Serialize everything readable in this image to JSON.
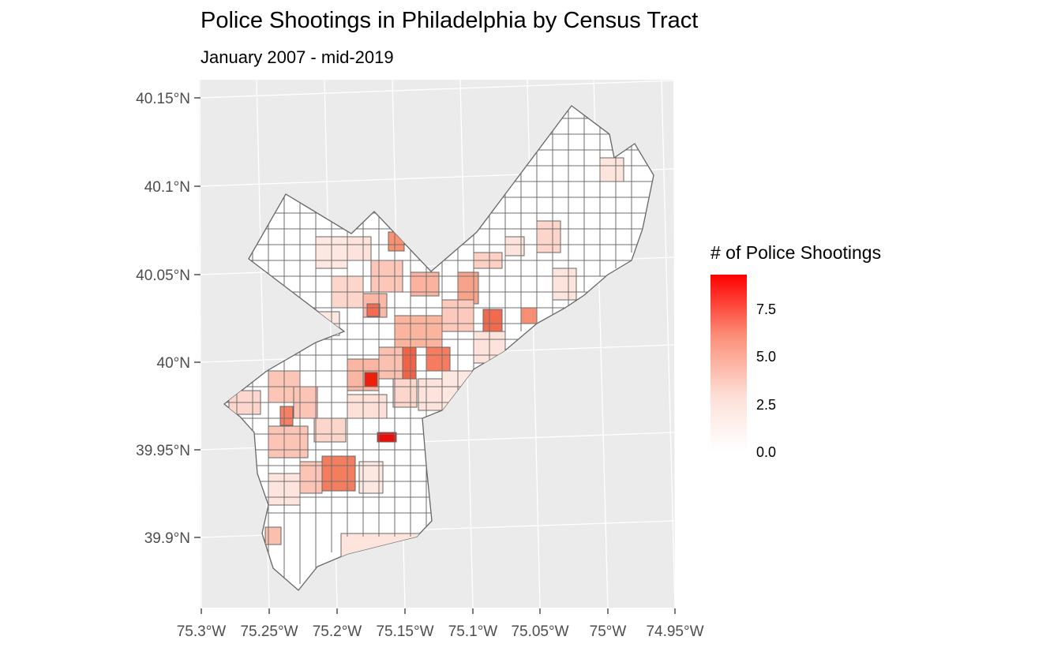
{
  "title": "Police Shootings in Philadelphia by Census Tract",
  "subtitle": "January 2007 - mid-2019",
  "legend": {
    "title": "# of Police Shootings",
    "min": 0,
    "max": 9,
    "ticks": [
      "0.0",
      "2.5",
      "5.0",
      "7.5"
    ],
    "color_low": "#ffffff",
    "color_high": "#ff0000"
  },
  "axes": {
    "y_ticks": [
      "40.15°N",
      "40.1°N",
      "40.05°N",
      "40°N",
      "39.95°N",
      "39.9°N"
    ],
    "x_ticks": [
      "75.3°W",
      "75.25°W",
      "75.2°W",
      "75.15°W",
      "75.1°W",
      "75.05°W",
      "75°W",
      "74.95°W"
    ]
  },
  "colors": {
    "panel_background": "#ebebeb",
    "gridline": "#ffffff",
    "tract_border": "#666666"
  }
}
